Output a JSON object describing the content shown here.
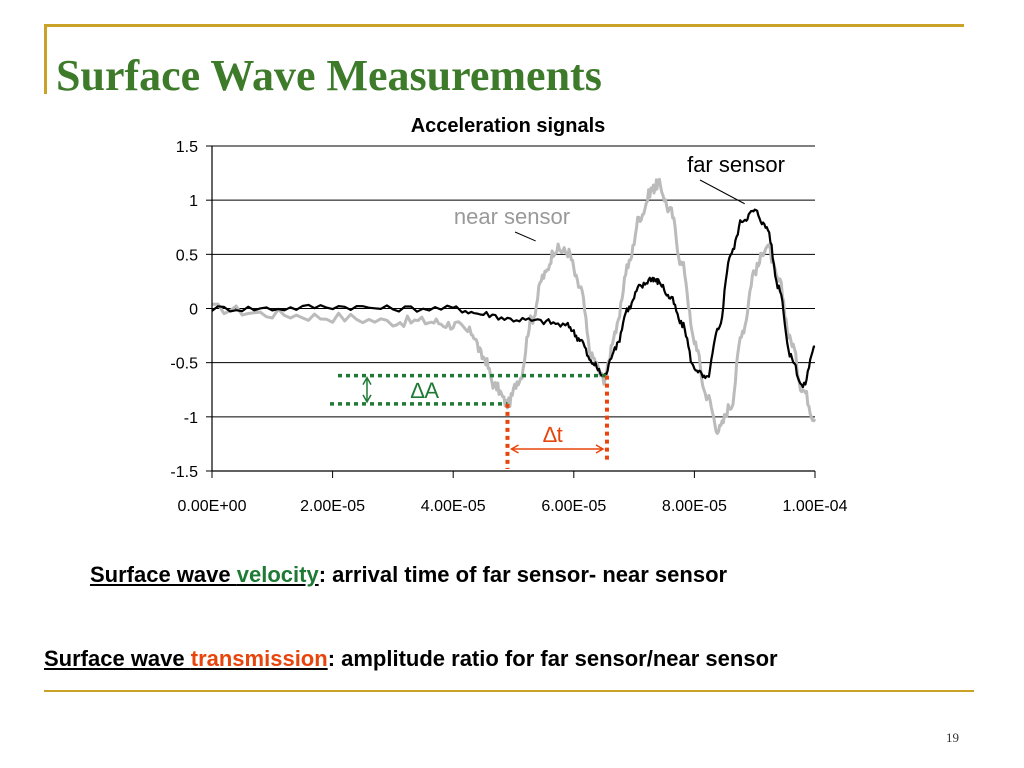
{
  "slide": {
    "title": "Surface Wave Measurements",
    "page_number": "19",
    "caption1": {
      "prefix": "Surface wave ",
      "keyword": "velocity",
      "suffix": ": arrival time of far sensor- near sensor"
    },
    "caption2": {
      "prefix": "Surface wave ",
      "keyword": "transmission",
      "suffix": ": amplitude ratio for far sensor/near sensor"
    },
    "colors": {
      "title": "#3d7a2a",
      "velocity": "#1f7a35",
      "transmission": "#e8450c",
      "rule": "#c9a227"
    }
  },
  "chart_data": {
    "type": "line",
    "title": "Acceleration signals",
    "xlabel": "",
    "ylabel": "",
    "xlim": [
      0,
      0.0001
    ],
    "ylim": [
      -1.5,
      1.5
    ],
    "x_ticks": [
      0,
      2e-05,
      4e-05,
      6e-05,
      8e-05,
      0.0001
    ],
    "x_tick_labels": [
      "0.00E+00",
      "2.00E-05",
      "4.00E-05",
      "6.00E-05",
      "8.00E-05",
      "1.00E-04"
    ],
    "y_ticks": [
      1.5,
      1,
      0.5,
      0,
      -0.5,
      -1,
      -1.5
    ],
    "y_tick_labels": [
      "1.5",
      "1",
      "0.5",
      "0",
      "-0.5",
      "-1",
      "-1.5"
    ],
    "grid": "horizontal",
    "series": [
      {
        "name": "near sensor",
        "color": "#bbbbbb",
        "x": [
          0,
          1e-05,
          2e-05,
          3e-05,
          3.6e-05,
          4e-05,
          4.3e-05,
          4.5e-05,
          4.7e-05,
          4.9e-05,
          5.1e-05,
          5.3e-05,
          5.5e-05,
          5.7e-05,
          5.9e-05,
          6.1e-05,
          6.3e-05,
          6.5e-05,
          6.7e-05,
          6.9e-05,
          7.1e-05,
          7.3e-05,
          7.4e-05,
          7.6e-05,
          7.8e-05,
          8e-05,
          8.2e-05,
          8.4e-05,
          8.6e-05,
          8.8e-05,
          9e-05,
          9.2e-05,
          9.4e-05,
          9.6e-05,
          9.8e-05,
          0.0001
        ],
        "y": [
          0,
          -0.05,
          -0.08,
          -0.12,
          -0.12,
          -0.15,
          -0.22,
          -0.45,
          -0.72,
          -0.88,
          -0.65,
          -0.1,
          0.3,
          0.55,
          0.52,
          0.2,
          -0.45,
          -0.65,
          -0.2,
          0.4,
          0.85,
          1.1,
          1.15,
          0.9,
          0.4,
          -0.3,
          -0.8,
          -1.12,
          -0.9,
          -0.2,
          0.35,
          0.58,
          0.25,
          -0.3,
          -0.75,
          -1.02
        ]
      },
      {
        "name": "far sensor",
        "color": "#000000",
        "x": [
          0,
          1e-05,
          2e-05,
          3e-05,
          4e-05,
          4.5e-05,
          5e-05,
          5.5e-05,
          5.9e-05,
          6.1e-05,
          6.3e-05,
          6.5e-05,
          6.7e-05,
          6.9e-05,
          7.1e-05,
          7.3e-05,
          7.4e-05,
          7.6e-05,
          7.8e-05,
          8e-05,
          8.2e-05,
          8.4e-05,
          8.6e-05,
          8.8e-05,
          9e-05,
          9.2e-05,
          9.4e-05,
          9.6e-05,
          9.8e-05,
          0.0001
        ],
        "y": [
          0,
          0,
          0.02,
          0,
          0,
          -0.05,
          -0.1,
          -0.12,
          -0.16,
          -0.28,
          -0.5,
          -0.62,
          -0.35,
          0,
          0.2,
          0.28,
          0.25,
          0.1,
          -0.15,
          -0.55,
          -0.65,
          -0.2,
          0.5,
          0.82,
          0.9,
          0.75,
          0.2,
          -0.45,
          -0.72,
          -0.35
        ]
      }
    ],
    "annotations": [
      {
        "name": "far-sensor-label",
        "text": "far sensor",
        "x": 8.9e-05,
        "y": 0.93
      },
      {
        "name": "near-sensor-label",
        "text": "near sensor",
        "x": 5.5e-05,
        "y": 0.55
      },
      {
        "name": "delta-a-label",
        "text": "∆A",
        "color": "#1f7a35"
      },
      {
        "name": "delta-t-label",
        "text": "∆t",
        "color": "#e8450c"
      }
    ],
    "markers": {
      "near_peak": {
        "x": 4.9e-05,
        "y": -0.88
      },
      "far_peak": {
        "x": 6.55e-05,
        "y": -0.62
      }
    }
  }
}
